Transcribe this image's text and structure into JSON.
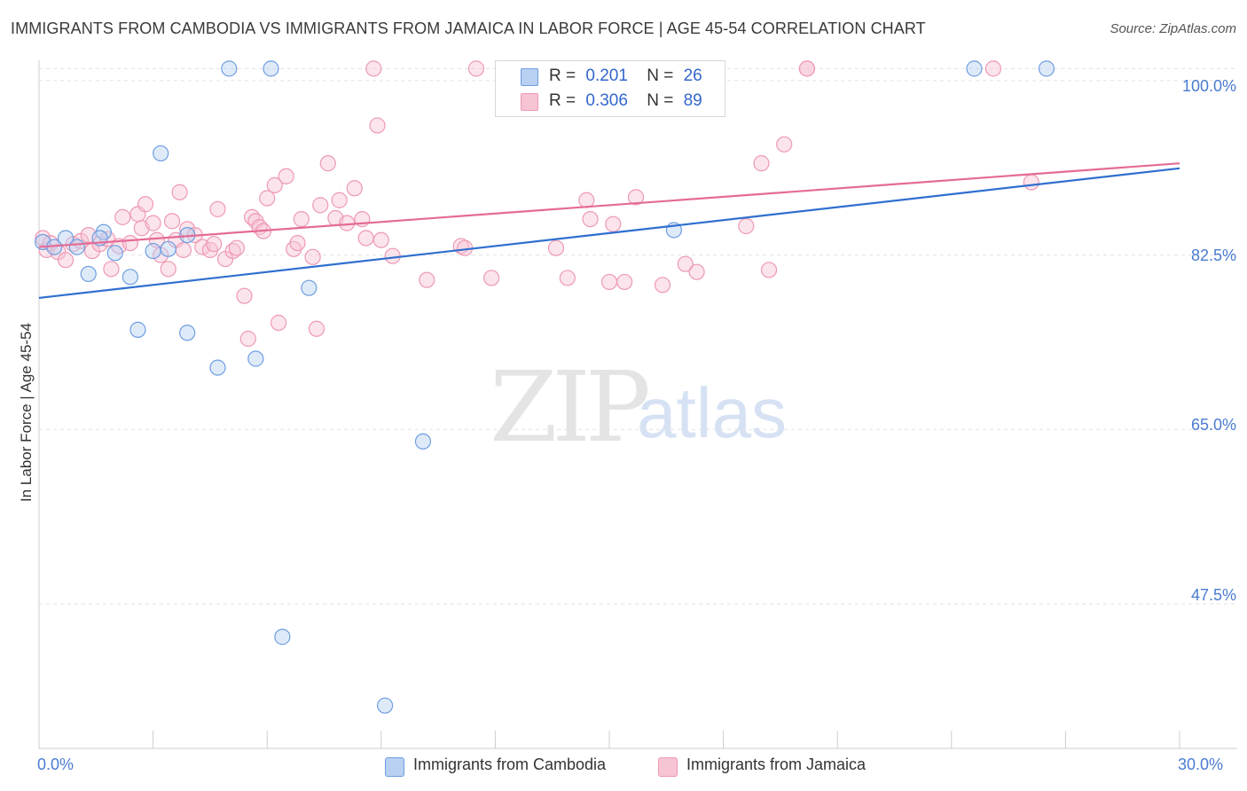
{
  "title": "IMMIGRANTS FROM CAMBODIA VS IMMIGRANTS FROM JAMAICA IN LABOR FORCE | AGE 45-54 CORRELATION CHART",
  "source": "Source: ZipAtlas.com",
  "watermark": {
    "zip": "ZIP",
    "atlas": "atlas"
  },
  "legend": {
    "r_label": "R =",
    "n_label": "N =",
    "cambodia": {
      "r": "0.201",
      "n": "26"
    },
    "jamaica": {
      "r": "0.306",
      "n": "89"
    }
  },
  "colors": {
    "cambodia_fill": "#b8d0f2",
    "cambodia_stroke": "#6d9ee0",
    "cambodia_line": "#2f6fcf",
    "jamaica_fill": "#f7c4d4",
    "jamaica_stroke": "#ee99b4",
    "jamaica_line": "#e46b95",
    "tick_label": "#4a7bd0"
  },
  "chart_data": {
    "type": "scatter",
    "title": "IMMIGRANTS FROM CAMBODIA VS IMMIGRANTS FROM JAMAICA IN LABOR FORCE | AGE 45-54 CORRELATION CHART",
    "xlabel": "",
    "ylabel": "In Labor Force | Age 45-54",
    "xlim": [
      0,
      30
    ],
    "ylim": [
      33,
      101.5
    ],
    "x_tick_labels": [
      "0.0%",
      "30.0%"
    ],
    "y_ticks": [
      47.5,
      65.0,
      82.5,
      100.0
    ],
    "y_tick_labels": [
      "47.5%",
      "65.0%",
      "82.5%",
      "100.0%"
    ],
    "grid": true,
    "legend_position": "top-center",
    "series": [
      {
        "name": "Immigrants from Cambodia",
        "points": [
          [
            0.1,
            83.8
          ],
          [
            0.4,
            83.3
          ],
          [
            0.7,
            84.2
          ],
          [
            1.0,
            83.3
          ],
          [
            1.3,
            80.6
          ],
          [
            1.7,
            84.8
          ],
          [
            1.6,
            84.2
          ],
          [
            2.0,
            82.7
          ],
          [
            2.4,
            80.3
          ],
          [
            2.6,
            75.0
          ],
          [
            3.0,
            82.9
          ],
          [
            3.2,
            92.7
          ],
          [
            3.4,
            83.1
          ],
          [
            3.9,
            74.7
          ],
          [
            3.9,
            84.5
          ],
          [
            4.7,
            71.2
          ],
          [
            5.0,
            101.2
          ],
          [
            5.7,
            72.1
          ],
          [
            6.1,
            101.2
          ],
          [
            6.4,
            44.2
          ],
          [
            7.1,
            79.2
          ],
          [
            9.1,
            37.3
          ],
          [
            10.1,
            63.8
          ],
          [
            16.7,
            85.0
          ],
          [
            24.6,
            101.2
          ],
          [
            26.5,
            101.2
          ]
        ],
        "trend": [
          [
            0,
            78.2
          ],
          [
            30,
            91.2
          ]
        ]
      },
      {
        "name": "Immigrants from Jamaica",
        "points": [
          [
            0.1,
            84.2
          ],
          [
            0.2,
            83.0
          ],
          [
            0.3,
            83.7
          ],
          [
            0.5,
            82.8
          ],
          [
            0.7,
            82.0
          ],
          [
            0.9,
            83.6
          ],
          [
            1.1,
            83.9
          ],
          [
            1.3,
            84.5
          ],
          [
            1.4,
            82.9
          ],
          [
            1.6,
            83.6
          ],
          [
            1.8,
            84.1
          ],
          [
            1.9,
            81.1
          ],
          [
            2.1,
            83.4
          ],
          [
            2.2,
            86.3
          ],
          [
            2.4,
            83.7
          ],
          [
            2.6,
            86.6
          ],
          [
            2.7,
            85.2
          ],
          [
            2.8,
            87.6
          ],
          [
            3.0,
            85.7
          ],
          [
            3.1,
            84.0
          ],
          [
            3.2,
            82.5
          ],
          [
            3.4,
            81.1
          ],
          [
            3.5,
            85.9
          ],
          [
            3.6,
            84.0
          ],
          [
            3.7,
            88.8
          ],
          [
            3.8,
            83.0
          ],
          [
            3.9,
            85.1
          ],
          [
            4.1,
            84.5
          ],
          [
            4.3,
            83.3
          ],
          [
            4.5,
            83.0
          ],
          [
            4.6,
            83.6
          ],
          [
            4.7,
            87.1
          ],
          [
            4.9,
            82.1
          ],
          [
            5.1,
            82.9
          ],
          [
            5.2,
            83.2
          ],
          [
            5.4,
            78.4
          ],
          [
            5.5,
            74.1
          ],
          [
            5.6,
            86.3
          ],
          [
            5.7,
            85.9
          ],
          [
            5.8,
            85.3
          ],
          [
            5.9,
            84.9
          ],
          [
            6.0,
            88.2
          ],
          [
            6.2,
            89.5
          ],
          [
            6.3,
            75.7
          ],
          [
            6.5,
            90.4
          ],
          [
            6.7,
            83.1
          ],
          [
            6.8,
            83.7
          ],
          [
            6.9,
            86.1
          ],
          [
            7.2,
            82.3
          ],
          [
            7.3,
            75.1
          ],
          [
            7.4,
            87.5
          ],
          [
            7.6,
            91.7
          ],
          [
            7.8,
            86.2
          ],
          [
            7.9,
            88.0
          ],
          [
            8.1,
            85.7
          ],
          [
            8.3,
            89.2
          ],
          [
            8.5,
            86.1
          ],
          [
            8.6,
            84.2
          ],
          [
            8.9,
            95.5
          ],
          [
            9.3,
            82.4
          ],
          [
            10.2,
            80.0
          ],
          [
            11.1,
            83.4
          ],
          [
            11.2,
            83.2
          ],
          [
            11.5,
            101.2
          ],
          [
            11.9,
            80.2
          ],
          [
            12.2,
            101.2
          ],
          [
            12.5,
            101.2
          ],
          [
            13.5,
            101.2
          ],
          [
            13.6,
            83.2
          ],
          [
            13.9,
            80.2
          ],
          [
            14.4,
            88.0
          ],
          [
            14.5,
            86.1
          ],
          [
            15.1,
            85.6
          ],
          [
            15.0,
            79.8
          ],
          [
            15.4,
            79.8
          ],
          [
            15.7,
            88.3
          ],
          [
            16.4,
            79.5
          ],
          [
            17.0,
            81.6
          ],
          [
            17.3,
            80.8
          ],
          [
            18.6,
            85.4
          ],
          [
            19.0,
            91.7
          ],
          [
            19.2,
            81.0
          ],
          [
            19.6,
            93.6
          ],
          [
            20.2,
            101.2
          ],
          [
            20.2,
            101.2
          ],
          [
            25.1,
            101.2
          ],
          [
            26.1,
            89.8
          ],
          [
            8.8,
            101.2
          ],
          [
            9.0,
            84.0
          ]
        ],
        "trend": [
          [
            0,
            83.3
          ],
          [
            30,
            91.7
          ]
        ]
      }
    ]
  },
  "bottom_legend": {
    "cambodia": "Immigrants from Cambodia",
    "jamaica": "Immigrants from Jamaica"
  }
}
